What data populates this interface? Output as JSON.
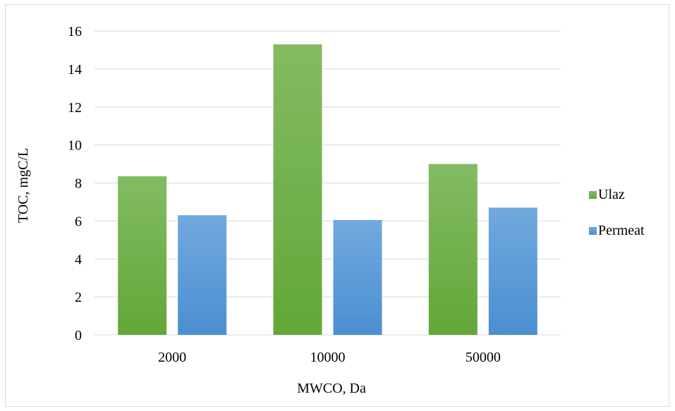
{
  "chart_data": {
    "type": "bar",
    "categories": [
      "2000",
      "10000",
      "50000"
    ],
    "series": [
      {
        "name": "Ulaz",
        "values": [
          8.35,
          15.3,
          9.0
        ],
        "color": "#70ad47"
      },
      {
        "name": "Permeat",
        "values": [
          6.3,
          6.05,
          6.7
        ],
        "color": "#5b9bd5"
      }
    ],
    "xlabel": "MWCO, Da",
    "ylabel": "TOC, mgC/L",
    "ylim": [
      0,
      16
    ],
    "yticks": [
      "0",
      "2",
      "4",
      "6",
      "8",
      "10",
      "12",
      "14",
      "16"
    ],
    "grid": true,
    "legend_position": "right"
  }
}
